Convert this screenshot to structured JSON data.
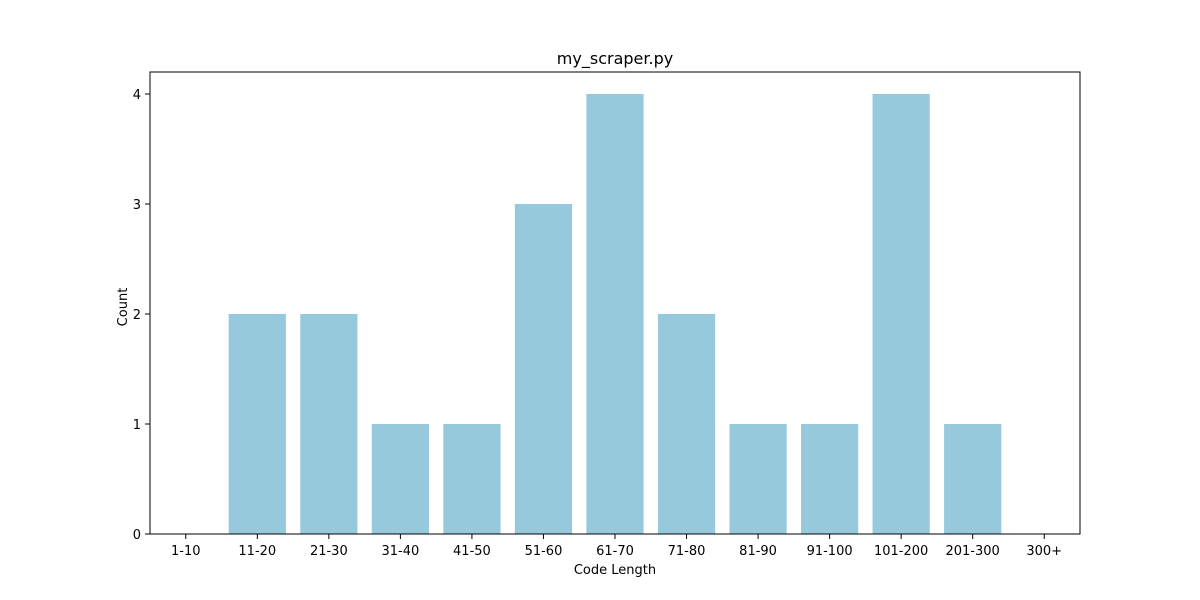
{
  "chart_data": {
    "type": "bar",
    "title": "my_scraper.py",
    "xlabel": "Code Length",
    "ylabel": "Count",
    "categories": [
      "1-10",
      "11-20",
      "21-30",
      "31-40",
      "41-50",
      "51-60",
      "61-70",
      "71-80",
      "81-90",
      "91-100",
      "101-200",
      "201-300",
      "300+"
    ],
    "values": [
      0,
      2,
      2,
      1,
      1,
      3,
      4,
      2,
      1,
      1,
      4,
      1,
      0
    ],
    "yticks": [
      0,
      1,
      2,
      3,
      4
    ],
    "ylim": [
      0,
      4.2
    ],
    "bar_color": "#96c9dc",
    "grid": false,
    "legend": "none"
  }
}
